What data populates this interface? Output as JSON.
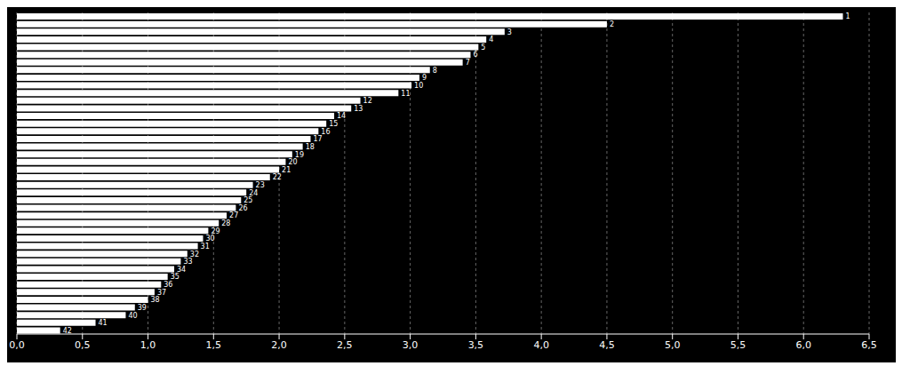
{
  "chart_data": {
    "type": "bar",
    "orientation": "horizontal",
    "categories": [
      "1",
      "2",
      "3",
      "4",
      "5",
      "6",
      "7",
      "8",
      "9",
      "10",
      "11",
      "12",
      "13",
      "14",
      "15",
      "16",
      "17",
      "18",
      "19",
      "20",
      "21",
      "22",
      "23",
      "24",
      "25",
      "26",
      "27",
      "28",
      "29",
      "30",
      "31",
      "32",
      "33",
      "34",
      "35",
      "36",
      "37",
      "38",
      "39",
      "40",
      "41",
      "42"
    ],
    "values": [
      6.3,
      4.5,
      3.72,
      3.58,
      3.52,
      3.46,
      3.4,
      3.15,
      3.07,
      3.01,
      2.91,
      2.62,
      2.55,
      2.42,
      2.36,
      2.3,
      2.24,
      2.18,
      2.1,
      2.05,
      2.0,
      1.93,
      1.8,
      1.75,
      1.71,
      1.67,
      1.6,
      1.54,
      1.46,
      1.42,
      1.38,
      1.3,
      1.25,
      1.2,
      1.15,
      1.1,
      1.05,
      1.0,
      0.9,
      0.83,
      0.6,
      0.33
    ],
    "color": "#ffffff",
    "xlim": [
      0.0,
      6.5
    ],
    "xticks": [
      {
        "value": 0.0,
        "label": "0,0"
      },
      {
        "value": 0.5,
        "label": "0,5"
      },
      {
        "value": 1.0,
        "label": "1,0"
      },
      {
        "value": 1.5,
        "label": "1,5"
      },
      {
        "value": 2.0,
        "label": "2,0"
      },
      {
        "value": 2.5,
        "label": "2,5"
      },
      {
        "value": 3.0,
        "label": "3,0"
      },
      {
        "value": 3.5,
        "label": "3,5"
      },
      {
        "value": 4.0,
        "label": "4,0"
      },
      {
        "value": 4.5,
        "label": "4,5"
      },
      {
        "value": 5.0,
        "label": "5,0"
      },
      {
        "value": 5.5,
        "label": "5,5"
      },
      {
        "value": 6.0,
        "label": "6,0"
      },
      {
        "value": 6.5,
        "label": "6,5"
      }
    ],
    "grid": true,
    "tick_labels": "x"
  }
}
